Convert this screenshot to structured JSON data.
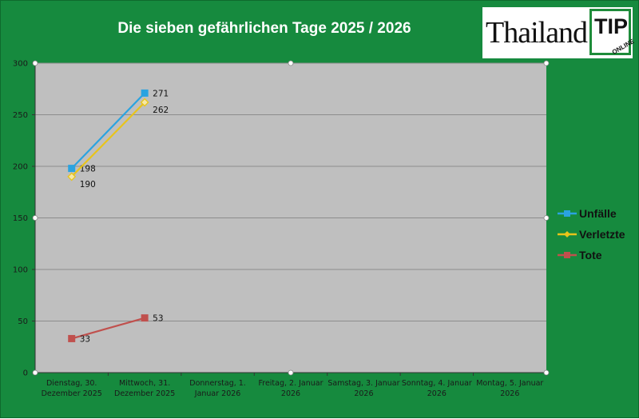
{
  "chart_data": {
    "type": "line",
    "title": "Die sieben gefährlichen Tage  2025 / 2026",
    "categories": [
      "Dienstag, 30. Dezember 2025",
      "Mittwoch, 31. Dezember 2025",
      "Donnerstag, 1. Januar 2026",
      "Freitag, 2. Januar 2026",
      "Samstag, 3. Januar 2026",
      "Sonntag, 4. Januar 2026",
      "Montag, 5. Januar 2026"
    ],
    "category_lines": [
      [
        "Dienstag, 30.",
        "Dezember 2025"
      ],
      [
        "Mittwoch, 31.",
        "Dezember 2025"
      ],
      [
        "Donnerstag, 1.",
        "Januar 2026"
      ],
      [
        "Freitag, 2. Januar",
        "2026"
      ],
      [
        "Samstag, 3. Januar",
        "2026"
      ],
      [
        "Sonntag, 4. Januar",
        "2026"
      ],
      [
        "Montag, 5. Januar",
        "2026"
      ]
    ],
    "series": [
      {
        "name": "Unfälle",
        "values": [
          198,
          271,
          null,
          null,
          null,
          null,
          null
        ],
        "color": "#2aa3e0",
        "marker": "square",
        "label_side": "right"
      },
      {
        "name": "Verletzte",
        "values": [
          190,
          262,
          null,
          null,
          null,
          null,
          null
        ],
        "color": "#e8c41a",
        "marker": "diamond",
        "label_side": "below"
      },
      {
        "name": "Tote",
        "values": [
          33,
          53,
          null,
          null,
          null,
          null,
          null
        ],
        "color": "#c0504d",
        "marker": "square",
        "label_side": "right"
      }
    ],
    "yticks": [
      0,
      50,
      100,
      150,
      200,
      250,
      300
    ],
    "ylim": [
      0,
      300
    ],
    "grid": true,
    "legend": "right",
    "plot_background": "#bfbfbf",
    "frame_background": "#168a3e"
  },
  "logo": {
    "word": "Thailand",
    "tip": "TIP",
    "online": "ONLINE"
  }
}
